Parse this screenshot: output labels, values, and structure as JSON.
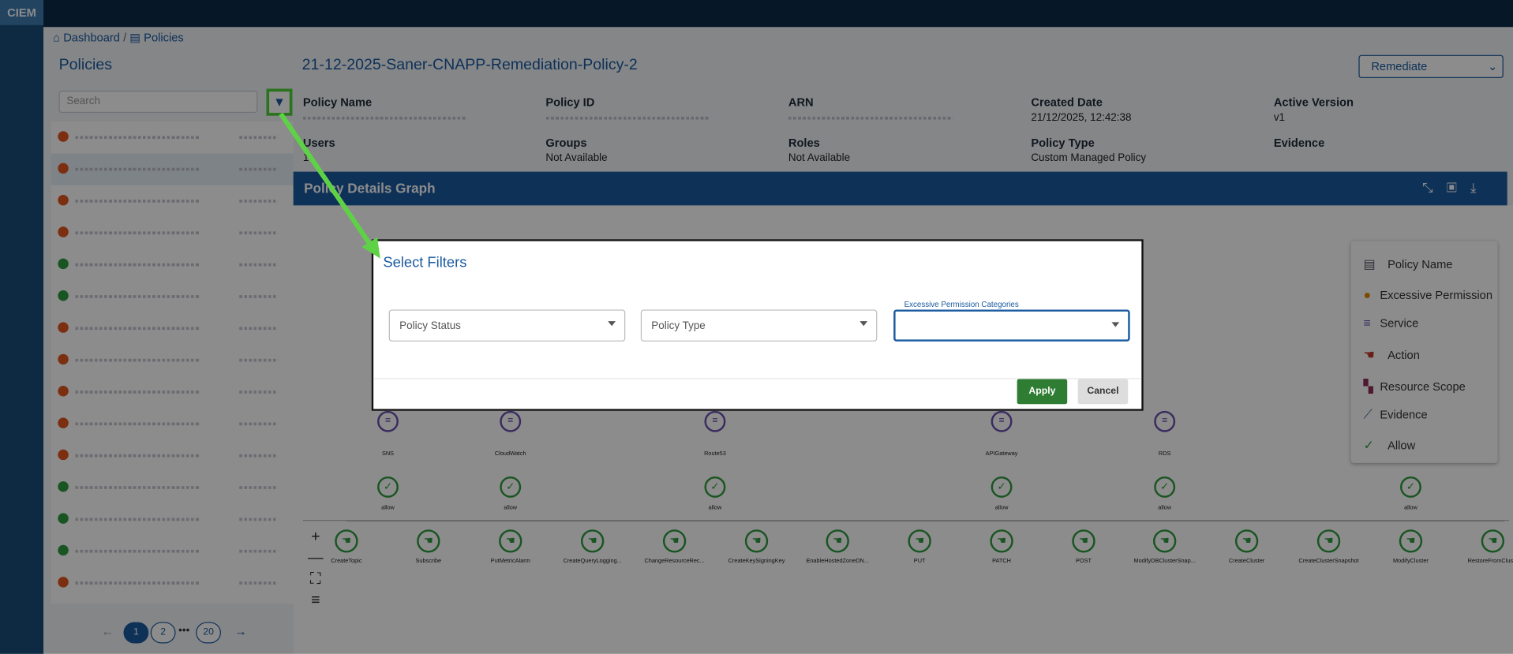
{
  "brand": "CIEM",
  "breadcrumb": [
    "Dashboard",
    "Policies"
  ],
  "sidebar": {
    "title": "Policies",
    "search_placeholder": "Search",
    "pagination": [
      "1",
      "2",
      "20"
    ]
  },
  "header": {
    "title": "21-12-2025-Saner-CNAPP-Remediation-Policy-2",
    "action": "Remediate"
  },
  "details": [
    {
      "label": "Policy Name"
    },
    {
      "label": "Policy ID"
    },
    {
      "label": "ARN"
    },
    {
      "label": "Created Date",
      "value": "21/12/2025, 12:42:38"
    },
    {
      "label": "Active Version",
      "value": "v1"
    },
    {
      "label": "Users",
      "value": "1"
    },
    {
      "label": "Groups",
      "value": "Not Available"
    },
    {
      "label": "Roles",
      "value": "Not Available"
    },
    {
      "label": "Policy Type",
      "value": "Custom Managed Policy"
    },
    {
      "label": "Evidence"
    }
  ],
  "graph": {
    "title": "Policy Details Graph",
    "services": [
      "SNS",
      "CloudWatch",
      "Route53",
      "APIGateway",
      "RDS"
    ],
    "allow_label": "allow",
    "actions": [
      "CreateTopic",
      "Subscribe",
      "PutMetricAlarm",
      "CreateQueryLogging...",
      "ChangeResourceRec...",
      "CreateKeySigningKey",
      "EnableHostedZoneDN...",
      "PUT",
      "PATCH",
      "POST",
      "ModifyDBClusterSnap...",
      "CreateCluster",
      "CreateClusterSnapshot",
      "ModifyCluster",
      "RestoreFromClus..."
    ],
    "legend": [
      "Policy Name",
      "Excessive Permission",
      "Service",
      "Action",
      "Resource Scope",
      "Evidence",
      "Allow"
    ]
  },
  "modal": {
    "title": "Select Filters",
    "fields": [
      "Policy Status",
      "Policy Type",
      "Excessive Permission Categories"
    ],
    "buttons": [
      "Apply",
      "Cancel"
    ]
  }
}
